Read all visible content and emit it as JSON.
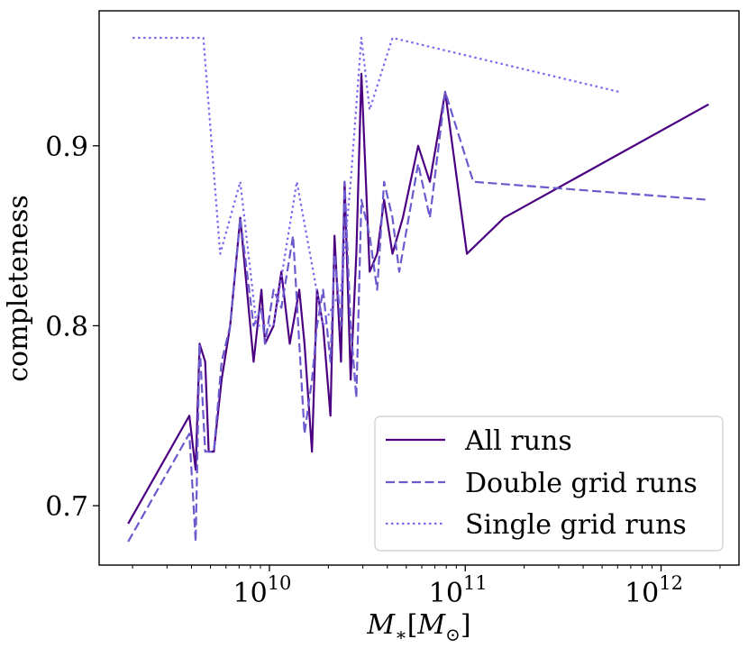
{
  "chart_data": {
    "type": "line",
    "xscale": "log",
    "xlim": [
      1350000000.0,
      2500000000000.0
    ],
    "ylim": [
      0.667,
      0.975
    ],
    "xlabel": "M_*[M_⊙]",
    "xlabel_parts": {
      "base": "M",
      "sub": "∗",
      "open": "[",
      "unit": "M",
      "unit_sub": "⊙",
      "close": "]"
    },
    "ylabel": "completeness",
    "yticks": [
      {
        "value": 0.7,
        "label": "0.7"
      },
      {
        "value": 0.8,
        "label": "0.8"
      },
      {
        "value": 0.9,
        "label": "0.9"
      }
    ],
    "xticks": [
      {
        "value": 10000000000.0,
        "base": "10",
        "exp": "10"
      },
      {
        "value": 100000000000.0,
        "base": "10",
        "exp": "11"
      },
      {
        "value": 1000000000000.0,
        "base": "10",
        "exp": "12"
      }
    ],
    "legend_position": "lower right",
    "series": [
      {
        "name": "All runs",
        "color": "#4b0082",
        "style": "solid",
        "points": [
          [
            1900000000.0,
            0.69
          ],
          [
            3900000000.0,
            0.75
          ],
          [
            4200000000.0,
            0.72
          ],
          [
            4400000000.0,
            0.79
          ],
          [
            4700000000.0,
            0.78
          ],
          [
            4900000000.0,
            0.73
          ],
          [
            5200000000.0,
            0.73
          ],
          [
            5700000000.0,
            0.77
          ],
          [
            6300000000.0,
            0.8
          ],
          [
            7100000000.0,
            0.86
          ],
          [
            8300000000.0,
            0.78
          ],
          [
            9100000000.0,
            0.82
          ],
          [
            9500000000.0,
            0.79
          ],
          [
            10500000000.0,
            0.8
          ],
          [
            11500000000.0,
            0.83
          ],
          [
            12700000000.0,
            0.79
          ],
          [
            14200000000.0,
            0.82
          ],
          [
            15100000000.0,
            0.79
          ],
          [
            16500000000.0,
            0.73
          ],
          [
            17500000000.0,
            0.82
          ],
          [
            18800000000.0,
            0.8
          ],
          [
            20500000000.0,
            0.75
          ],
          [
            21500000000.0,
            0.85
          ],
          [
            23200000000.0,
            0.78
          ],
          [
            24200000000.0,
            0.88
          ],
          [
            26000000000.0,
            0.77
          ],
          [
            27800000000.0,
            0.84
          ],
          [
            29500000000.0,
            0.94
          ],
          [
            32500000000.0,
            0.83
          ],
          [
            35500000000.0,
            0.84
          ],
          [
            38500000000.0,
            0.87
          ],
          [
            42500000000.0,
            0.84
          ],
          [
            48000000000.0,
            0.86
          ],
          [
            57500000000.0,
            0.9
          ],
          [
            66000000000.0,
            0.88
          ],
          [
            79000000000.0,
            0.93
          ],
          [
            102000000000.0,
            0.84
          ],
          [
            158000000000.0,
            0.86
          ],
          [
            1750000000000.0,
            0.923
          ]
        ]
      },
      {
        "name": "Double grid runs",
        "color": "#6a5acd",
        "style": "dashed",
        "points": [
          [
            1900000000.0,
            0.68
          ],
          [
            3900000000.0,
            0.74
          ],
          [
            4200000000.0,
            0.68
          ],
          [
            4400000000.0,
            0.79
          ],
          [
            4700000000.0,
            0.73
          ],
          [
            5200000000.0,
            0.73
          ],
          [
            5700000000.0,
            0.78
          ],
          [
            6300000000.0,
            0.8
          ],
          [
            7100000000.0,
            0.86
          ],
          [
            8300000000.0,
            0.8
          ],
          [
            9100000000.0,
            0.81
          ],
          [
            9500000000.0,
            0.79
          ],
          [
            10500000000.0,
            0.82
          ],
          [
            11500000000.0,
            0.81
          ],
          [
            13200000000.0,
            0.85
          ],
          [
            15100000000.0,
            0.74
          ],
          [
            16500000000.0,
            0.77
          ],
          [
            17500000000.0,
            0.8
          ],
          [
            18800000000.0,
            0.82
          ],
          [
            20500000000.0,
            0.78
          ],
          [
            21500000000.0,
            0.84
          ],
          [
            23200000000.0,
            0.8
          ],
          [
            24200000000.0,
            0.88
          ],
          [
            26000000000.0,
            0.8
          ],
          [
            27800000000.0,
            0.76
          ],
          [
            29500000000.0,
            0.87
          ],
          [
            32500000000.0,
            0.85
          ],
          [
            35500000000.0,
            0.82
          ],
          [
            38500000000.0,
            0.88
          ],
          [
            42500000000.0,
            0.86
          ],
          [
            46000000000.0,
            0.83
          ],
          [
            57500000000.0,
            0.89
          ],
          [
            66000000000.0,
            0.86
          ],
          [
            79000000000.0,
            0.93
          ],
          [
            110000000000.0,
            0.88
          ],
          [
            1750000000000.0,
            0.87
          ]
        ]
      },
      {
        "name": "Single grid runs",
        "color": "#7b68ee",
        "style": "dotted",
        "points": [
          [
            2000000000.0,
            0.96
          ],
          [
            4600000000.0,
            0.96
          ],
          [
            5600000000.0,
            0.84
          ],
          [
            7100000000.0,
            0.88
          ],
          [
            8600000000.0,
            0.8
          ],
          [
            9500000000.0,
            0.8
          ],
          [
            10500000000.0,
            0.8
          ],
          [
            13800000000.0,
            0.88
          ],
          [
            18800000000.0,
            0.8
          ],
          [
            23200000000.0,
            0.82
          ],
          [
            26000000000.0,
            0.88
          ],
          [
            29500000000.0,
            0.96
          ],
          [
            32500000000.0,
            0.92
          ],
          [
            42500000000.0,
            0.96
          ],
          [
            610000000000.0,
            0.93
          ]
        ]
      }
    ]
  }
}
